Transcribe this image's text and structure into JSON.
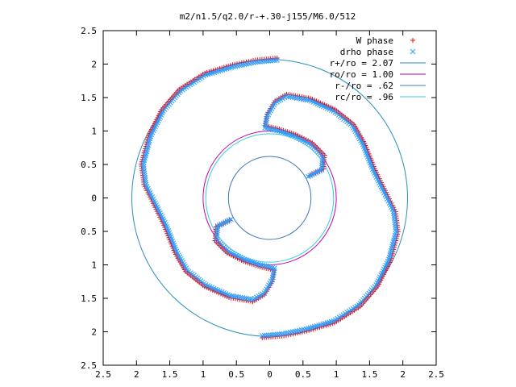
{
  "chart_data": {
    "type": "scatter",
    "title": "m2/n1.5/q2.0/r-+.30-j155/M6.0/512",
    "xlim": [
      -2.5,
      2.5
    ],
    "ylim": [
      -2.5,
      2.5
    ],
    "x_ticks": [
      "2.5",
      "2",
      "1.5",
      "1",
      "0.5",
      "0",
      "0.5",
      "1",
      "1.5",
      "2",
      "2.5"
    ],
    "y_ticks": [
      "2.5",
      "2",
      "1.5",
      "1",
      "0.5",
      "0",
      "0.5",
      "1",
      "1.5",
      "2",
      "2.5"
    ],
    "legend_position": "top-right",
    "grid": false,
    "series": [
      {
        "name": "W phase",
        "marker": "+",
        "color": "#ff0000"
      },
      {
        "name": "drho phase",
        "marker": "x",
        "color": "#2a9bff"
      },
      {
        "name": "r+/ro = 2.07",
        "kind": "circle",
        "radius": 2.07,
        "color": "#2a8fbf"
      },
      {
        "name": "ro/ro = 1.00",
        "kind": "circle",
        "radius": 1.0,
        "color": "#bf00bf"
      },
      {
        "name": "r-/ro = .62",
        "kind": "circle",
        "radius": 0.62,
        "color": "#3a78c0"
      },
      {
        "name": "rc/ro = .96",
        "kind": "circle",
        "radius": 0.96,
        "color": "#30d0d8"
      }
    ],
    "spiral_arms": [
      {
        "points": [
          [
            0.11,
            2.06
          ],
          [
            -0.21,
            2.03
          ],
          [
            -0.55,
            1.96
          ],
          [
            -0.96,
            1.84
          ],
          [
            -1.34,
            1.6
          ],
          [
            -1.6,
            1.3
          ],
          [
            -1.79,
            0.92
          ],
          [
            -1.9,
            0.5
          ],
          [
            -1.86,
            0.2
          ],
          [
            -1.72,
            -0.08
          ],
          [
            -1.56,
            -0.4
          ],
          [
            -1.4,
            -0.8
          ],
          [
            -1.24,
            -1.08
          ],
          [
            -0.96,
            -1.3
          ],
          [
            -0.6,
            -1.46
          ],
          [
            -0.25,
            -1.52
          ],
          [
            -0.08,
            -1.42
          ],
          [
            0.04,
            -1.22
          ],
          [
            0.07,
            -1.05
          ],
          [
            -0.14,
            -1.0
          ],
          [
            -0.38,
            -0.92
          ],
          [
            -0.62,
            -0.8
          ],
          [
            -0.8,
            -0.62
          ],
          [
            -0.78,
            -0.42
          ],
          [
            -0.58,
            -0.32
          ]
        ]
      },
      {
        "points": [
          [
            -0.11,
            -2.06
          ],
          [
            0.21,
            -2.03
          ],
          [
            0.55,
            -1.96
          ],
          [
            0.96,
            -1.84
          ],
          [
            1.34,
            -1.6
          ],
          [
            1.6,
            -1.3
          ],
          [
            1.79,
            -0.92
          ],
          [
            1.9,
            -0.5
          ],
          [
            1.86,
            -0.2
          ],
          [
            1.72,
            0.08
          ],
          [
            1.56,
            0.4
          ],
          [
            1.4,
            0.8
          ],
          [
            1.24,
            1.08
          ],
          [
            0.96,
            1.3
          ],
          [
            0.6,
            1.46
          ],
          [
            0.25,
            1.52
          ],
          [
            0.08,
            1.42
          ],
          [
            -0.04,
            1.22
          ],
          [
            -0.07,
            1.05
          ],
          [
            0.14,
            1.0
          ],
          [
            0.38,
            0.92
          ],
          [
            0.62,
            0.8
          ],
          [
            0.8,
            0.62
          ],
          [
            0.78,
            0.42
          ],
          [
            0.58,
            0.32
          ]
        ]
      }
    ]
  }
}
